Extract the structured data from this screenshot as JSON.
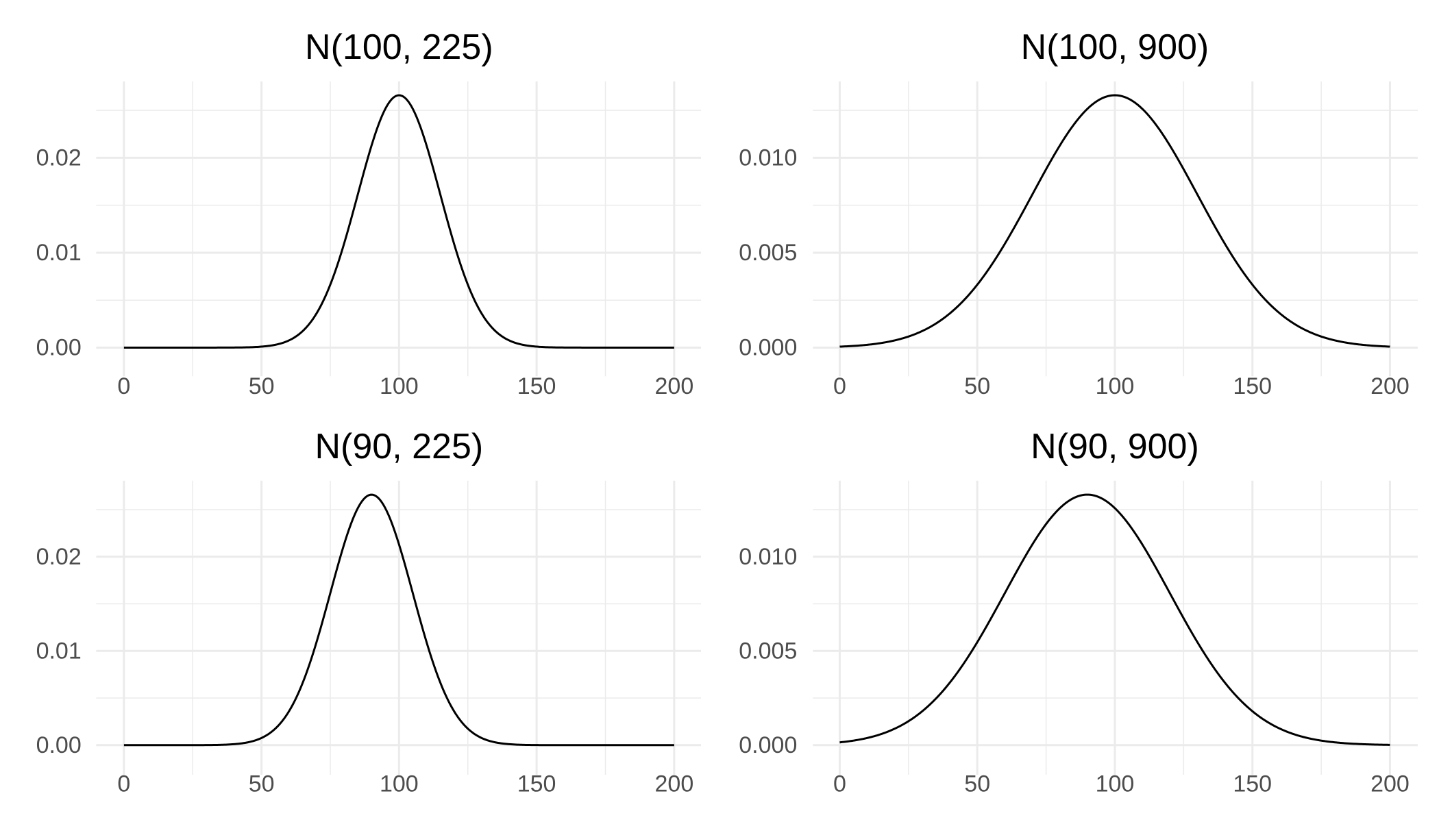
{
  "chart_data": [
    {
      "type": "line",
      "title": "N(100, 225)",
      "series": [
        {
          "distribution": "normal",
          "mean": 100,
          "variance": 225
        }
      ],
      "xlim": [
        0,
        200
      ],
      "ylim": [
        0,
        0.0266
      ],
      "x_ticks": [
        0,
        50,
        100,
        150,
        200
      ],
      "x_tick_labels": [
        "0",
        "50",
        "100",
        "150",
        "200"
      ],
      "y_ticks": [
        0,
        0.01,
        0.02
      ],
      "y_tick_labels": [
        "0.00",
        "0.01",
        "0.02"
      ],
      "grid": true
    },
    {
      "type": "line",
      "title": "N(100, 900)",
      "series": [
        {
          "distribution": "normal",
          "mean": 100,
          "variance": 900
        }
      ],
      "xlim": [
        0,
        200
      ],
      "ylim": [
        0,
        0.0133
      ],
      "x_ticks": [
        0,
        50,
        100,
        150,
        200
      ],
      "x_tick_labels": [
        "0",
        "50",
        "100",
        "150",
        "200"
      ],
      "y_ticks": [
        0,
        0.005,
        0.01
      ],
      "y_tick_labels": [
        "0.000",
        "0.005",
        "0.010"
      ],
      "grid": true
    },
    {
      "type": "line",
      "title": "N(90, 225)",
      "series": [
        {
          "distribution": "normal",
          "mean": 90,
          "variance": 225
        }
      ],
      "xlim": [
        0,
        200
      ],
      "ylim": [
        0,
        0.0266
      ],
      "x_ticks": [
        0,
        50,
        100,
        150,
        200
      ],
      "x_tick_labels": [
        "0",
        "50",
        "100",
        "150",
        "200"
      ],
      "y_ticks": [
        0,
        0.01,
        0.02
      ],
      "y_tick_labels": [
        "0.00",
        "0.01",
        "0.02"
      ],
      "grid": true
    },
    {
      "type": "line",
      "title": "N(90, 900)",
      "series": [
        {
          "distribution": "normal",
          "mean": 90,
          "variance": 900
        }
      ],
      "xlim": [
        0,
        200
      ],
      "ylim": [
        0,
        0.0133
      ],
      "x_ticks": [
        0,
        50,
        100,
        150,
        200
      ],
      "x_tick_labels": [
        "0",
        "50",
        "100",
        "150",
        "200"
      ],
      "y_ticks": [
        0,
        0.005,
        0.01
      ],
      "y_tick_labels": [
        "0.000",
        "0.005",
        "0.010"
      ],
      "grid": true
    }
  ]
}
